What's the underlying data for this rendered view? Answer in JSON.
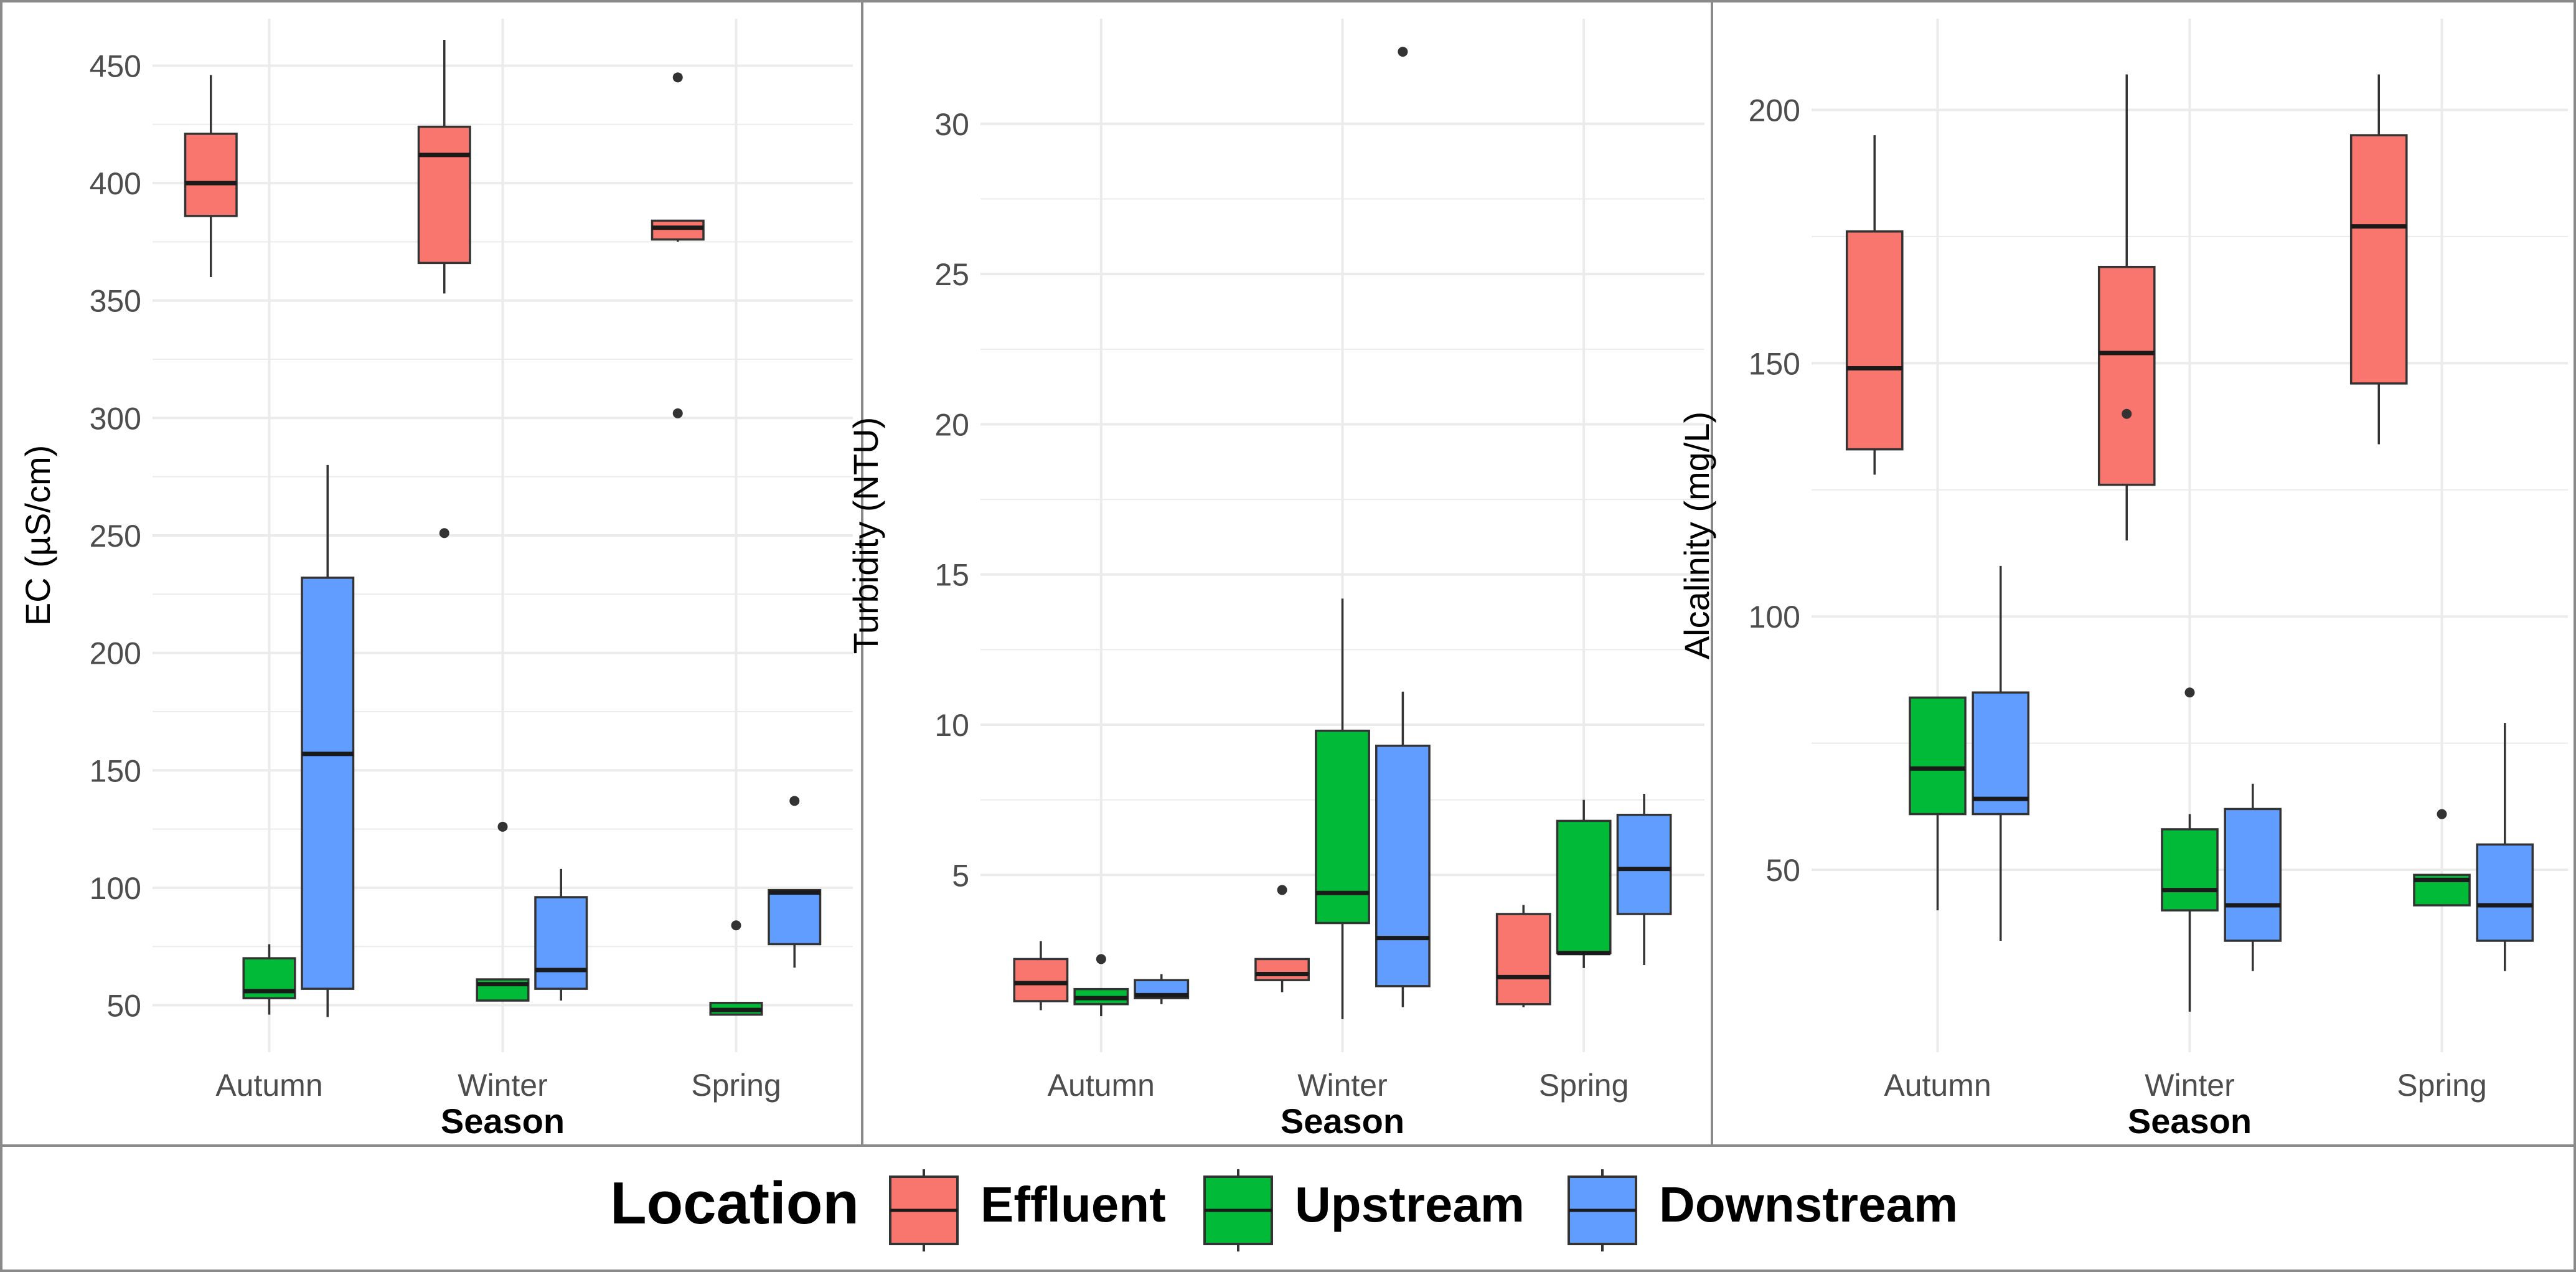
{
  "colors": {
    "Effluent": "#F8766D",
    "Upstream": "#00BA38",
    "Downstream": "#619CFF",
    "grid": "#EBEBEB",
    "axis_text": "#4D4D4D",
    "frame": "#333333"
  },
  "legend": {
    "title": "Location",
    "placement": "bottom",
    "entries": [
      "Effluent",
      "Upstream",
      "Downstream"
    ]
  },
  "chart_data": [
    {
      "type": "box",
      "xlabel": "Season",
      "ylabel": "EC (µS/cm)",
      "categories": [
        "Autumn",
        "Winter",
        "Spring"
      ],
      "ylim": [
        30,
        470
      ],
      "yticks": [
        50,
        100,
        150,
        200,
        250,
        300,
        350,
        400,
        450
      ],
      "grid": true,
      "series": [
        {
          "name": "Effluent",
          "boxes": [
            {
              "min": 360,
              "q1": 386,
              "median": 400,
              "q3": 421,
              "max": 446,
              "outliers": []
            },
            {
              "min": 353,
              "q1": 366,
              "median": 412,
              "q3": 424,
              "max": 461,
              "outliers": [
                251
              ]
            },
            {
              "min": 375,
              "q1": 376,
              "median": 381,
              "q3": 384,
              "max": 384,
              "outliers": [
                445,
                302
              ]
            }
          ]
        },
        {
          "name": "Upstream",
          "boxes": [
            {
              "min": 46,
              "q1": 53,
              "median": 56,
              "q3": 70,
              "max": 76,
              "outliers": []
            },
            {
              "min": 52,
              "q1": 52,
              "median": 59,
              "q3": 61,
              "max": 61,
              "outliers": [
                126
              ]
            },
            {
              "min": 46,
              "q1": 46,
              "median": 48,
              "q3": 51,
              "max": 51,
              "outliers": [
                84
              ]
            }
          ]
        },
        {
          "name": "Downstream",
          "boxes": [
            {
              "min": 45,
              "q1": 57,
              "median": 157,
              "q3": 232,
              "max": 280,
              "outliers": []
            },
            {
              "min": 52,
              "q1": 57,
              "median": 65,
              "q3": 96,
              "max": 108,
              "outliers": []
            },
            {
              "min": 66,
              "q1": 76,
              "median": 98,
              "q3": 99,
              "max": 99,
              "outliers": [
                137
              ]
            }
          ]
        }
      ]
    },
    {
      "type": "box",
      "xlabel": "Season",
      "ylabel": "Turbidity (NTU)",
      "categories": [
        "Autumn",
        "Winter",
        "Spring"
      ],
      "ylim": [
        -0.9,
        33.5
      ],
      "yticks": [
        5,
        10,
        15,
        20,
        25,
        30
      ],
      "grid": true,
      "series": [
        {
          "name": "Effluent",
          "boxes": [
            {
              "min": 0.5,
              "q1": 0.8,
              "median": 1.4,
              "q3": 2.2,
              "max": 2.8,
              "outliers": []
            },
            {
              "min": 1.1,
              "q1": 1.5,
              "median": 1.7,
              "q3": 2.2,
              "max": 2.2,
              "outliers": [
                4.5
              ]
            },
            {
              "min": 0.6,
              "q1": 0.7,
              "median": 1.6,
              "q3": 3.7,
              "max": 4.0,
              "outliers": []
            }
          ]
        },
        {
          "name": "Upstream",
          "boxes": [
            {
              "min": 0.3,
              "q1": 0.7,
              "median": 0.9,
              "q3": 1.2,
              "max": 1.2,
              "outliers": [
                2.2
              ]
            },
            {
              "min": 0.2,
              "q1": 3.4,
              "median": 4.4,
              "q3": 9.8,
              "max": 14.2,
              "outliers": []
            },
            {
              "min": 1.9,
              "q1": 2.4,
              "median": 2.4,
              "q3": 6.8,
              "max": 7.5,
              "outliers": []
            }
          ]
        },
        {
          "name": "Downstream",
          "boxes": [
            {
              "min": 0.7,
              "q1": 0.9,
              "median": 1.0,
              "q3": 1.5,
              "max": 1.7,
              "outliers": []
            },
            {
              "min": 0.6,
              "q1": 1.3,
              "median": 2.9,
              "q3": 9.3,
              "max": 11.1,
              "outliers": [
                32.4
              ]
            },
            {
              "min": 2.0,
              "q1": 3.7,
              "median": 5.2,
              "q3": 7.0,
              "max": 7.7,
              "outliers": []
            }
          ]
        }
      ]
    },
    {
      "type": "box",
      "xlabel": "Season",
      "ylabel": "Alcalinity (mg/L)",
      "categories": [
        "Autumn",
        "Winter",
        "Spring"
      ],
      "ylim": [
        14,
        218
      ],
      "yticks": [
        50,
        100,
        150,
        200
      ],
      "grid": true,
      "series": [
        {
          "name": "Effluent",
          "boxes": [
            {
              "min": 128,
              "q1": 133,
              "median": 149,
              "q3": 176,
              "max": 195,
              "outliers": []
            },
            {
              "min": 115,
              "q1": 126,
              "median": 152,
              "q3": 169,
              "max": 207,
              "outliers": [
                140
              ]
            },
            {
              "min": 134,
              "q1": 146,
              "median": 177,
              "q3": 195,
              "max": 207,
              "outliers": []
            }
          ]
        },
        {
          "name": "Upstream",
          "boxes": [
            {
              "min": 42,
              "q1": 61,
              "median": 70,
              "q3": 84,
              "max": 84,
              "outliers": []
            },
            {
              "min": 22,
              "q1": 42,
              "median": 46,
              "q3": 58,
              "max": 61,
              "outliers": [
                85
              ]
            },
            {
              "min": 43,
              "q1": 43,
              "median": 48,
              "q3": 49,
              "max": 49,
              "outliers": [
                61
              ]
            }
          ]
        },
        {
          "name": "Downstream",
          "boxes": [
            {
              "min": 36,
              "q1": 61,
              "median": 64,
              "q3": 85,
              "max": 110,
              "outliers": []
            },
            {
              "min": 30,
              "q1": 36,
              "median": 43,
              "q3": 62,
              "max": 67,
              "outliers": []
            },
            {
              "min": 30,
              "q1": 36,
              "median": 43,
              "q3": 55,
              "max": 79,
              "outliers": []
            }
          ]
        }
      ]
    }
  ]
}
